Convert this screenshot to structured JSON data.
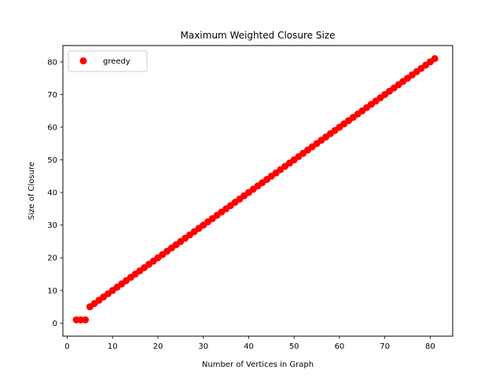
{
  "chart_data": {
    "type": "scatter",
    "title": "Maximum Weighted Closure Size",
    "xlabel": "Number of Vertices in Graph",
    "ylabel": "Size of Closure",
    "xlim": [
      -0.95,
      84.95
    ],
    "ylim": [
      -4,
      85
    ],
    "xticks": [
      0,
      10,
      20,
      30,
      40,
      50,
      60,
      70,
      80
    ],
    "yticks": [
      0,
      10,
      20,
      30,
      40,
      50,
      60,
      70,
      80
    ],
    "grid": false,
    "legend": {
      "loc": "upper-left"
    },
    "series": [
      {
        "name": "greedy",
        "color": "#ff0000",
        "x": [
          2,
          3,
          4,
          5,
          6,
          7,
          8,
          9,
          10,
          11,
          12,
          13,
          14,
          15,
          16,
          17,
          18,
          19,
          20,
          21,
          22,
          23,
          24,
          25,
          26,
          27,
          28,
          29,
          30,
          31,
          32,
          33,
          34,
          35,
          36,
          37,
          38,
          39,
          40,
          41,
          42,
          43,
          44,
          45,
          46,
          47,
          48,
          49,
          50,
          51,
          52,
          53,
          54,
          55,
          56,
          57,
          58,
          59,
          60,
          61,
          62,
          63,
          64,
          65,
          66,
          67,
          68,
          69,
          70,
          71,
          72,
          73,
          74,
          75,
          76,
          77,
          78,
          79,
          80,
          81
        ],
        "y": [
          1,
          1,
          1,
          5,
          6,
          7,
          8,
          9,
          10,
          11,
          12,
          13,
          14,
          15,
          16,
          17,
          18,
          19,
          20,
          21,
          22,
          23,
          24,
          25,
          26,
          27,
          28,
          29,
          30,
          31,
          32,
          33,
          34,
          35,
          36,
          37,
          38,
          39,
          40,
          41,
          42,
          43,
          44,
          45,
          46,
          47,
          48,
          49,
          50,
          51,
          52,
          53,
          54,
          55,
          56,
          57,
          58,
          59,
          60,
          61,
          62,
          63,
          64,
          65,
          66,
          67,
          68,
          69,
          70,
          71,
          72,
          73,
          74,
          75,
          76,
          77,
          78,
          79,
          80,
          81
        ]
      }
    ]
  }
}
